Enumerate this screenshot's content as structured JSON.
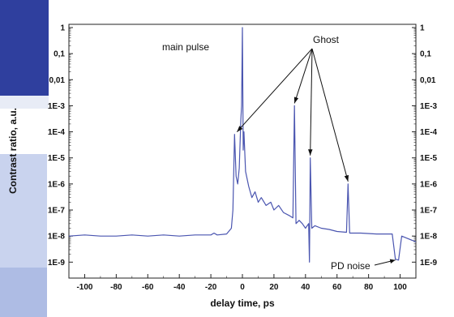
{
  "chart_data": {
    "type": "line",
    "xlabel": "delay time, ps",
    "ylabel": "Contrast ratio, a.u.",
    "xlim": [
      -110,
      110
    ],
    "ylim": [
      5e-10,
      1
    ],
    "yscale": "log",
    "x_ticks": [
      -100,
      -80,
      -60,
      -40,
      -20,
      0,
      20,
      40,
      60,
      80,
      100
    ],
    "x_tick_labels": [
      "-100",
      "-80",
      "-60",
      "-40",
      "-20",
      "0",
      "20",
      "40",
      "60",
      "80",
      "100"
    ],
    "y_ticks": [
      1e-09,
      1e-08,
      1e-07,
      1e-06,
      1e-05,
      0.0001,
      0.001,
      0.01,
      0.1,
      1
    ],
    "y_tick_labels": [
      "1E-9",
      "1E-8",
      "1E-7",
      "1E-6",
      "1E-5",
      "1E-4",
      "1E-3",
      "0,01",
      "0,1",
      "1"
    ],
    "line_color": "#4a55b0",
    "grid": false,
    "series": [
      {
        "points": [
          [
            -110,
            1e-08
          ],
          [
            -100,
            1.1e-08
          ],
          [
            -90,
            1e-08
          ],
          [
            -80,
            1e-08
          ],
          [
            -70,
            1.1e-08
          ],
          [
            -60,
            1e-08
          ],
          [
            -50,
            1.1e-08
          ],
          [
            -40,
            1e-08
          ],
          [
            -30,
            1.1e-08
          ],
          [
            -20,
            1.1e-08
          ],
          [
            -18,
            1.3e-08
          ],
          [
            -16,
            1.1e-08
          ],
          [
            -10,
            1.2e-08
          ],
          [
            -7,
            2e-08
          ],
          [
            -6,
            1e-07
          ],
          [
            -5,
            8e-05
          ],
          [
            -4,
            2e-06
          ],
          [
            -3,
            1e-06
          ],
          [
            -2,
            4e-06
          ],
          [
            -1,
            0.0003
          ],
          [
            -0.5,
            0.001
          ],
          [
            0,
            1.0
          ],
          [
            0.5,
            2e-05
          ],
          [
            1,
            0.0001
          ],
          [
            2,
            3e-06
          ],
          [
            4,
            8e-07
          ],
          [
            6,
            3e-07
          ],
          [
            8,
            5e-07
          ],
          [
            10,
            2e-07
          ],
          [
            12,
            3e-07
          ],
          [
            15,
            1.5e-07
          ],
          [
            18,
            2e-07
          ],
          [
            20,
            1e-07
          ],
          [
            23,
            1.5e-07
          ],
          [
            26,
            8e-08
          ],
          [
            30,
            6e-08
          ],
          [
            32,
            5e-08
          ],
          [
            33,
            0.001
          ],
          [
            34,
            3e-08
          ],
          [
            36,
            4e-08
          ],
          [
            38,
            3e-08
          ],
          [
            40,
            2e-08
          ],
          [
            42,
            3e-08
          ],
          [
            42.5,
            1e-09
          ],
          [
            43,
            1e-05
          ],
          [
            44,
            2e-08
          ],
          [
            46,
            2.5e-08
          ],
          [
            50,
            2e-08
          ],
          [
            55,
            1.8e-08
          ],
          [
            60,
            1.5e-08
          ],
          [
            66,
            1.4e-08
          ],
          [
            67,
            1e-06
          ],
          [
            68,
            1.3e-08
          ],
          [
            75,
            1.3e-08
          ],
          [
            85,
            1.2e-08
          ],
          [
            95,
            1.2e-08
          ],
          [
            97,
            1.3e-09
          ],
          [
            99,
            1.2e-09
          ],
          [
            101,
            1e-08
          ],
          [
            110,
            6e-09
          ]
        ]
      }
    ],
    "annotations": [
      {
        "id": "main-pulse",
        "text": "main pulse",
        "target": [
          0,
          1.0
        ]
      },
      {
        "id": "ghost",
        "text": "Ghost",
        "targets": [
          [
            -5,
            8e-05
          ],
          [
            33,
            0.001
          ],
          [
            43,
            1e-05
          ],
          [
            67,
            1e-06
          ]
        ]
      },
      {
        "id": "pd-noise",
        "text": "PD noise",
        "target": [
          98,
          1.2e-09
        ]
      }
    ]
  }
}
